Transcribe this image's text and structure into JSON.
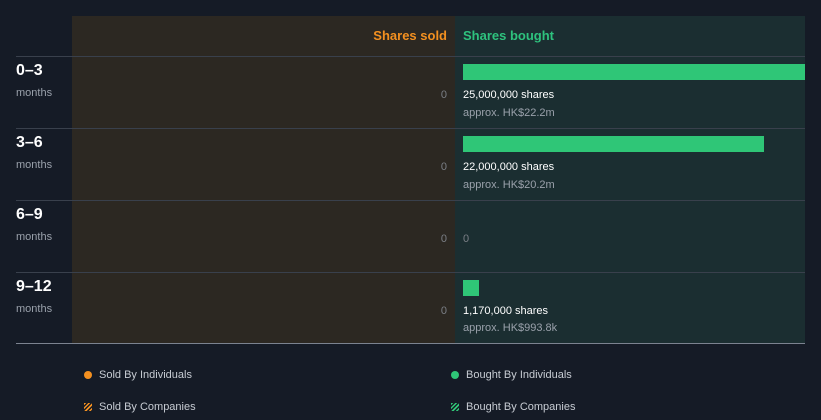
{
  "colors": {
    "sold": "#f39020",
    "bought": "#2fc677"
  },
  "chart_data": {
    "type": "bar",
    "orientation": "horizontal",
    "categories": [
      "0–3 months",
      "3–6 months",
      "6–9 months",
      "9–12 months"
    ],
    "series": [
      {
        "name": "Shares sold",
        "values": [
          0,
          0,
          0,
          0
        ]
      },
      {
        "name": "Shares bought",
        "values": [
          25000000,
          22000000,
          0,
          1170000
        ]
      }
    ]
  },
  "headers": {
    "sold": "Shares sold",
    "bought": "Shares bought"
  },
  "rows": [
    {
      "period": "0–3",
      "unit": "months",
      "sold": "0",
      "shares": "25,000,000 shares",
      "approx": "approx. HK$22.2m",
      "bought_zero": ""
    },
    {
      "period": "3–6",
      "unit": "months",
      "sold": "0",
      "shares": "22,000,000 shares",
      "approx": "approx. HK$20.2m",
      "bought_zero": ""
    },
    {
      "period": "6–9",
      "unit": "months",
      "sold": "0",
      "shares": "",
      "approx": "",
      "bought_zero": "0"
    },
    {
      "period": "9–12",
      "unit": "months",
      "sold": "0",
      "shares": "1,170,000 shares",
      "approx": "approx. HK$993.8k",
      "bought_zero": ""
    }
  ],
  "legend": {
    "sold_individuals": "Sold By Individuals",
    "bought_individuals": "Bought By Individuals",
    "sold_companies": "Sold By Companies",
    "bought_companies": "Bought By Companies"
  }
}
